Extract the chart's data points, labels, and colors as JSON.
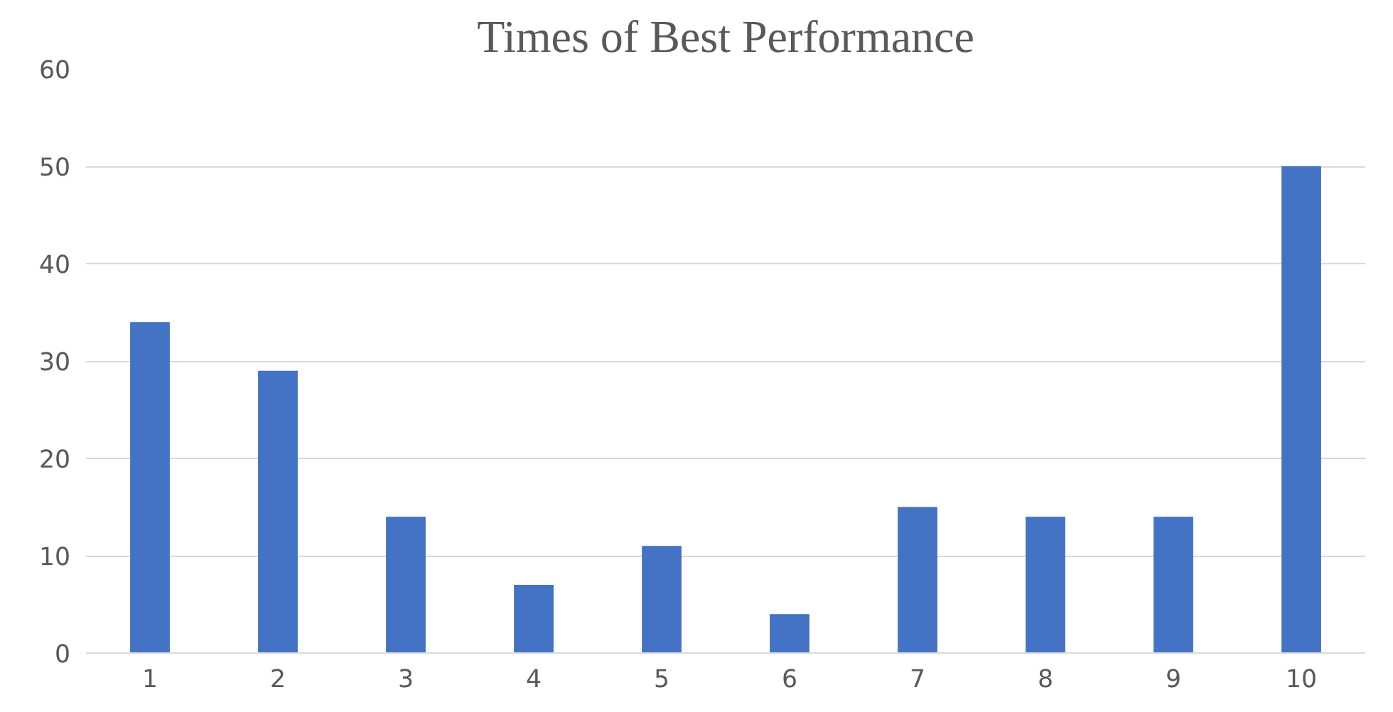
{
  "chart_data": {
    "type": "bar",
    "title": "Times of Best Performance",
    "categories": [
      "1",
      "2",
      "3",
      "4",
      "5",
      "6",
      "7",
      "8",
      "9",
      "10"
    ],
    "values": [
      34,
      29,
      14,
      7,
      11,
      4,
      15,
      14,
      14,
      50
    ],
    "color": "#4472c4",
    "ylim": [
      0,
      60
    ],
    "yticks": [
      0,
      10,
      20,
      30,
      40,
      50,
      60
    ],
    "grid": "y"
  }
}
